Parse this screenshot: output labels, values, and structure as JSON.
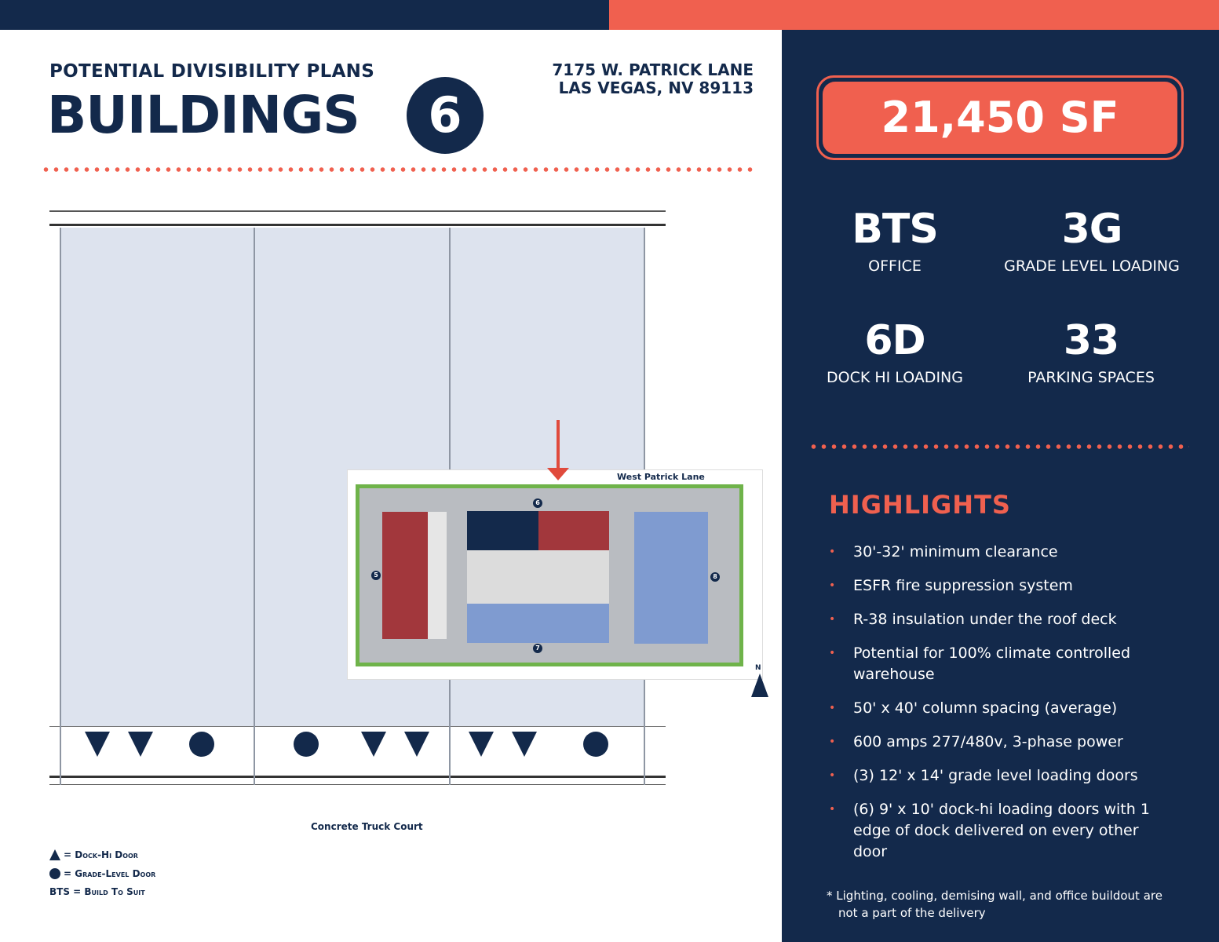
{
  "header": {
    "subtitle": "POTENTIAL DIVISIBILITY PLANS",
    "title": "BUILDINGS",
    "building_number": "6",
    "address_line1": "7175 W. PATRICK LANE",
    "address_line2": "LAS VEGAS, NV 89113"
  },
  "size": "21,450 SF",
  "stats": [
    {
      "value": "BTS",
      "label": "OFFICE"
    },
    {
      "value": "3G",
      "label": "GRADE LEVEL LOADING"
    },
    {
      "value": "6D",
      "label": "DOCK HI LOADING"
    },
    {
      "value": "33",
      "label": "PARKING SPACES"
    }
  ],
  "highlights": {
    "title": "HIGHLIGHTS",
    "items": [
      "30'-32' minimum clearance",
      "ESFR fire suppression system",
      "R-38 insulation under the roof deck",
      "Potential for 100% climate controlled warehouse",
      "50' x 40' column spacing (average)",
      "600 amps 277/480v, 3-phase power",
      "(3) 12' x 14' grade level loading doors",
      "(6) 9' x 10' dock-hi loading doors with 1 edge of dock delivered on every other door"
    ],
    "note": "* Lighting, cooling, demising wall, and office buildout are not a part of the delivery"
  },
  "plan": {
    "truck_court": "Concrete Truck Court",
    "doors": [
      "dock",
      "dock",
      "grade",
      "grade",
      "dock",
      "dock",
      "dock",
      "dock",
      "grade"
    ]
  },
  "site": {
    "street": "West Patrick Lane",
    "markers": [
      "5",
      "6",
      "7",
      "8"
    ],
    "north": "N"
  },
  "legend": {
    "dock": "= Dock-Hi Door",
    "grade": "= Grade-Level Door",
    "bts": "BTS = Build To Suit"
  },
  "colors": {
    "navy": "#13294b",
    "coral": "#f0604f",
    "unit_blue": "#7f9bd0",
    "unit_red": "#a2373c"
  }
}
